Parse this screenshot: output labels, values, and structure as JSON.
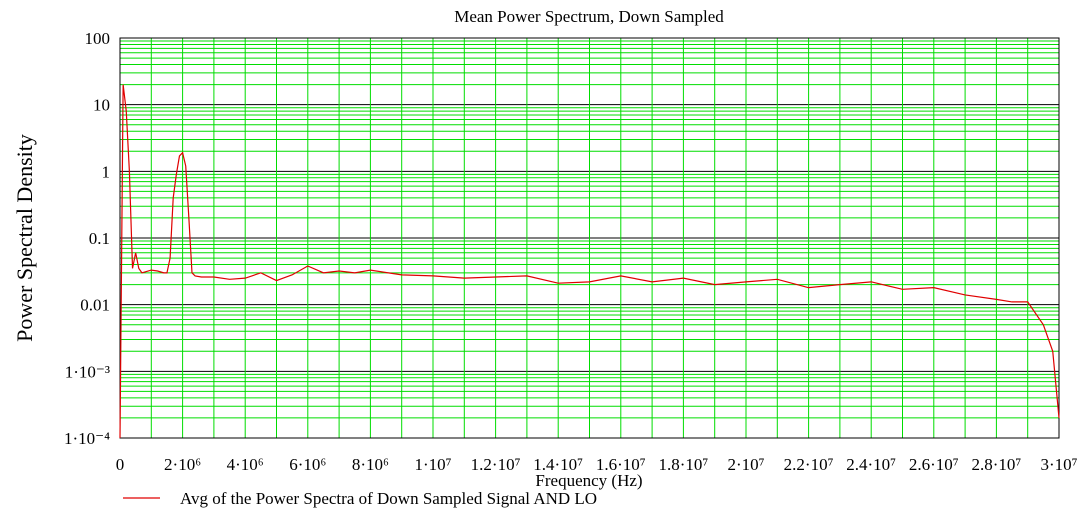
{
  "chart_data": {
    "type": "line",
    "title": "Mean Power Spectrum, Down Sampled",
    "xlabel": "Frequency (Hz)",
    "ylabel": "Power Spectral Density",
    "log_y": true,
    "grid": true,
    "grid_color": "#00dd00",
    "legend": "bottom-left",
    "xlim": [
      0,
      30000000
    ],
    "ylim": [
      0.0001,
      100
    ],
    "xticks": [
      0,
      {
        "value": 2000000,
        "label": "2·10⁶"
      },
      {
        "value": 4000000,
        "label": "4·10⁶"
      },
      {
        "value": 6000000,
        "label": "6·10⁶"
      },
      {
        "value": 8000000,
        "label": "8·10⁶"
      },
      {
        "value": 10000000,
        "label": "1·10⁷"
      },
      {
        "value": 12000000,
        "label": "1.2·10⁷"
      },
      {
        "value": 14000000,
        "label": "1.4·10⁷"
      },
      {
        "value": 16000000,
        "label": "1.6·10⁷"
      },
      {
        "value": 18000000,
        "label": "1.8·10⁷"
      },
      {
        "value": 20000000,
        "label": "2·10⁷"
      },
      {
        "value": 22000000,
        "label": "2.2·10⁷"
      },
      {
        "value": 24000000,
        "label": "2.4·10⁷"
      },
      {
        "value": 26000000,
        "label": "2.6·10⁷"
      },
      {
        "value": 28000000,
        "label": "2.8·10⁷"
      },
      {
        "value": 30000000,
        "label": "3·10⁷"
      }
    ],
    "yticks": [
      {
        "value": 0.0001,
        "label": "1·10⁻⁴"
      },
      {
        "value": 0.001,
        "label": "1·10⁻³"
      },
      0.01,
      0.1,
      1,
      10,
      100
    ],
    "x": [
      0,
      100000,
      200000,
      300000,
      400000,
      500000,
      600000,
      700000,
      800000,
      1000000,
      1200000,
      1400000,
      1500000,
      1600000,
      1700000,
      1800000,
      1900000,
      2000000,
      2100000,
      2200000,
      2300000,
      2400000,
      2600000,
      3000000,
      3500000,
      4000000,
      4500000,
      5000000,
      5500000,
      6000000,
      6500000,
      7000000,
      7500000,
      8000000,
      9000000,
      10000000,
      11000000,
      12000000,
      13000000,
      14000000,
      15000000,
      16000000,
      17000000,
      18000000,
      19000000,
      20000000,
      21000000,
      22000000,
      23000000,
      24000000,
      25000000,
      26000000,
      27000000,
      28000000,
      28500000,
      29000000,
      29500000,
      29800000,
      30000000
    ],
    "series": [
      {
        "name": "Avg of the Power Spectra of Down Sampled Signal AND LO",
        "color": "#e00000",
        "values": [
          0.0001,
          20,
          8,
          1,
          0.035,
          0.06,
          0.035,
          0.03,
          0.031,
          0.033,
          0.032,
          0.03,
          0.03,
          0.05,
          0.4,
          0.9,
          1.7,
          1.9,
          1.2,
          0.2,
          0.03,
          0.027,
          0.026,
          0.026,
          0.024,
          0.025,
          0.03,
          0.023,
          0.028,
          0.038,
          0.03,
          0.032,
          0.03,
          0.033,
          0.028,
          0.027,
          0.025,
          0.026,
          0.027,
          0.021,
          0.022,
          0.027,
          0.022,
          0.025,
          0.02,
          0.022,
          0.024,
          0.018,
          0.02,
          0.022,
          0.017,
          0.018,
          0.014,
          0.012,
          0.011,
          0.011,
          0.005,
          0.002,
          0.0002
        ]
      }
    ]
  }
}
